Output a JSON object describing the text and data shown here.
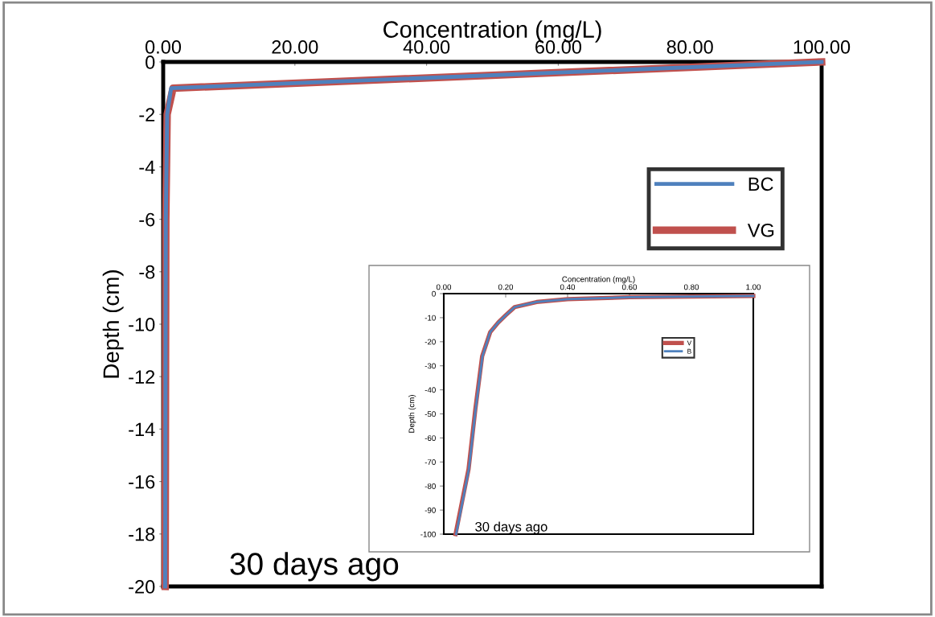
{
  "chart_data": [
    {
      "type": "line",
      "xlabel": "Concentration (mg/L)",
      "ylabel": "Depth (cm)",
      "series": [
        {
          "name": "BC",
          "color": "#4f81bd",
          "x": [
            100,
            1.2,
            0.6,
            0.4,
            0.3
          ],
          "values": [
            0,
            -1,
            -2,
            -6,
            -20
          ]
        },
        {
          "name": "VG",
          "color": "#c0504d",
          "x": [
            100,
            1.5,
            0.6,
            0.4,
            0.3
          ],
          "values": [
            0,
            -1,
            -2,
            -6,
            -20
          ]
        }
      ],
      "xlim": [
        0,
        100
      ],
      "xticks": [
        {
          "value": 0,
          "label": "0.00"
        },
        {
          "value": 20,
          "label": "20.00"
        },
        {
          "value": 40,
          "label": "40.00"
        },
        {
          "value": 60,
          "label": "60.00"
        },
        {
          "value": 80,
          "label": "80.00"
        },
        {
          "value": 100,
          "label": "100.00"
        }
      ],
      "ylim": [
        -20,
        0
      ],
      "yticks": [
        0,
        -2,
        -4,
        -6,
        -8,
        -10,
        -12,
        -14,
        -16,
        -18,
        -20
      ],
      "legend": "right",
      "grid": false,
      "annotations": [
        "30 days ago"
      ]
    },
    {
      "type": "line",
      "xlabel": "Concentration (mg/L)",
      "ylabel": "Depth (cm)",
      "series": [
        {
          "name": "V",
          "color": "#c0504d",
          "x": [
            0.038,
            0.08,
            0.102,
            0.124,
            0.15,
            0.176,
            0.2,
            0.229,
            0.3,
            0.4,
            0.6,
            0.8,
            1.0
          ],
          "values": [
            -100,
            -73,
            -48,
            -26,
            -16,
            -12,
            -9,
            -5.6,
            -3.5,
            -2.3,
            -1.5,
            -1.2,
            -1.0
          ]
        },
        {
          "name": "B",
          "color": "#4f81bd",
          "x": [
            0.04,
            0.081,
            0.103,
            0.125,
            0.15,
            0.176,
            0.2,
            0.229,
            0.3,
            0.4,
            0.6,
            0.8,
            1.0
          ],
          "values": [
            -100,
            -73,
            -48,
            -26,
            -16,
            -12,
            -9,
            -5.6,
            -3.5,
            -2.3,
            -1.5,
            -1.2,
            -1.0
          ]
        }
      ],
      "xlim": [
        0,
        1
      ],
      "xticks": [
        {
          "value": 0,
          "label": "0.00"
        },
        {
          "value": 0.2,
          "label": "0.20"
        },
        {
          "value": 0.4,
          "label": "0.40"
        },
        {
          "value": 0.6,
          "label": "0.60"
        },
        {
          "value": 0.8,
          "label": "0.80"
        },
        {
          "value": 1.0,
          "label": "1.00"
        }
      ],
      "ylim": [
        -100,
        0
      ],
      "yticks": [
        0,
        -10,
        -20,
        -30,
        -40,
        -50,
        -60,
        -70,
        -80,
        -90,
        -100
      ],
      "legend": "right",
      "grid": false,
      "annotations": [
        "30 days ago"
      ]
    }
  ]
}
